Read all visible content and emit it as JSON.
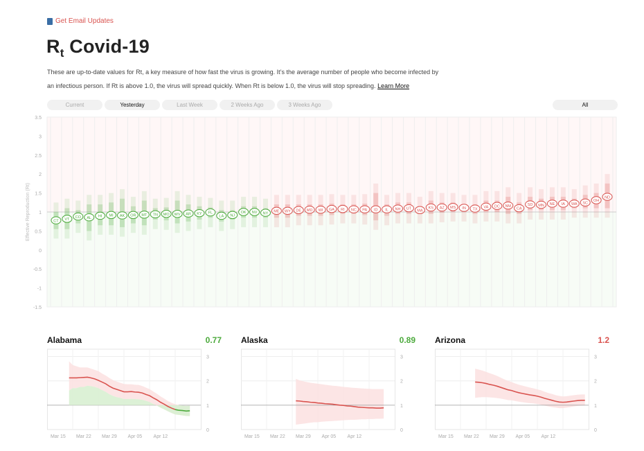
{
  "header": {
    "email_link": "Get Email Updates",
    "title_main": "R",
    "title_sub": "t",
    "title_rest": " Covid-19",
    "intro_text": "These are up-to-date values for Rt, a key measure of how fast the virus is growing. It’s the average number of people who become infected by an infectious person. If Rt is above 1.0, the virus will spread quickly. When Rt is below 1.0, the virus will stop spreading.",
    "learn_more": "Learn More"
  },
  "tabs": [
    {
      "label": "Current",
      "active": false
    },
    {
      "label": "Yesterday",
      "active": true
    },
    {
      "label": "Last Week",
      "active": false
    },
    {
      "label": "2 Weeks Ago",
      "active": false
    },
    {
      "label": "3 Weeks Ago",
      "active": false
    }
  ],
  "filter": {
    "label": "All"
  },
  "colors": {
    "below": "#4caa3c",
    "above": "#d9534f",
    "below_fill": "#d8f0d2",
    "above_fill": "#fbe1e1"
  },
  "chart_data": [
    {
      "type": "scatter",
      "ylabel": "Effective Reproduction (Rt)",
      "ylim": [
        -1.5,
        3.5
      ],
      "yticks": [
        "3.5",
        "3",
        "2.5",
        "2",
        "1.5",
        "1",
        "0.5",
        "0",
        "-0.5",
        "-1",
        "-1.5"
      ],
      "reference_line": 1,
      "states": [
        "CT",
        "VT",
        "CO",
        "AL",
        "HI",
        "MI",
        "AK",
        "OR",
        "MT",
        "TN",
        "MO",
        "WV",
        "AR",
        "KY",
        "FL",
        "LA",
        "NJ",
        "OK",
        "NV",
        "NY",
        "ME",
        "WY",
        "DE",
        "MD",
        "WI",
        "GA",
        "RI",
        "NC",
        "PA",
        "ID",
        "IL",
        "NH",
        "UT",
        "MA",
        "KS",
        "AZ",
        "MS",
        "IN",
        "TX",
        "VA",
        "DC",
        "NM",
        "CA",
        "SD",
        "MN",
        "NE",
        "IA",
        "WA",
        "SC",
        "OH",
        "ND"
      ],
      "rt": [
        0.78,
        0.82,
        0.88,
        0.86,
        0.9,
        0.92,
        0.91,
        0.92,
        0.93,
        0.94,
        0.95,
        0.95,
        0.96,
        0.97,
        0.99,
        0.9,
        0.92,
        1.0,
        1.0,
        0.98,
        1.03,
        1.03,
        1.05,
        1.06,
        1.06,
        1.08,
        1.08,
        1.07,
        1.07,
        1.07,
        1.07,
        1.09,
        1.1,
        1.05,
        1.12,
        1.12,
        1.13,
        1.11,
        1.09,
        1.14,
        1.16,
        1.17,
        1.1,
        1.2,
        1.19,
        1.22,
        1.22,
        1.22,
        1.25,
        1.31,
        1.4
      ],
      "low80": [
        0.55,
        0.55,
        0.7,
        0.5,
        0.65,
        0.65,
        0.6,
        0.7,
        0.65,
        0.8,
        0.78,
        0.7,
        0.75,
        0.8,
        0.85,
        0.75,
        0.8,
        0.85,
        0.85,
        0.85,
        0.85,
        0.85,
        0.9,
        0.9,
        0.9,
        0.92,
        0.95,
        0.95,
        0.92,
        0.78,
        0.9,
        0.95,
        0.95,
        0.95,
        0.95,
        0.98,
        1.0,
        1.0,
        0.95,
        1.0,
        1.0,
        0.95,
        0.95,
        1.05,
        1.05,
        1.05,
        1.05,
        1.1,
        1.1,
        1.1,
        1.1
      ],
      "high80": [
        1.0,
        1.1,
        1.05,
        1.2,
        1.2,
        1.25,
        1.35,
        1.15,
        1.3,
        1.1,
        1.12,
        1.3,
        1.2,
        1.15,
        1.12,
        1.05,
        1.05,
        1.15,
        1.15,
        1.1,
        1.2,
        1.2,
        1.2,
        1.2,
        1.2,
        1.22,
        1.2,
        1.2,
        1.22,
        1.5,
        1.2,
        1.25,
        1.25,
        1.15,
        1.3,
        1.25,
        1.25,
        1.2,
        1.2,
        1.3,
        1.3,
        1.4,
        1.25,
        1.4,
        1.35,
        1.4,
        1.4,
        1.35,
        1.45,
        1.5,
        1.75
      ]
    },
    {
      "type": "line",
      "state": "Alabama",
      "latest": "0.77",
      "status": "below",
      "xticks": [
        "Mar 15",
        "Mar 22",
        "Mar 29",
        "Apr 05",
        "Apr 12"
      ],
      "ylim": [
        0,
        3.3
      ],
      "yticks": [
        "0",
        "1",
        "2",
        "3"
      ],
      "x_days": [
        6,
        7,
        8,
        9,
        10,
        11,
        12,
        13,
        14,
        15,
        16,
        17,
        18,
        19,
        20,
        21,
        22,
        23,
        24,
        25,
        26,
        27,
        28,
        29,
        30,
        31,
        32,
        33,
        34,
        35,
        36,
        37,
        38,
        39
      ],
      "values": [
        2.12,
        2.12,
        2.12,
        2.13,
        2.14,
        2.15,
        2.12,
        2.08,
        2.02,
        1.95,
        1.88,
        1.78,
        1.7,
        1.65,
        1.6,
        1.55,
        1.55,
        1.56,
        1.54,
        1.53,
        1.5,
        1.44,
        1.39,
        1.3,
        1.22,
        1.12,
        1.04,
        0.95,
        0.88,
        0.82,
        0.79,
        0.78,
        0.76,
        0.77
      ],
      "band_low": [
        1.6,
        1.7,
        1.7,
        1.75,
        1.75,
        1.8,
        1.78,
        1.75,
        1.7,
        1.62,
        1.55,
        1.45,
        1.38,
        1.33,
        1.3,
        1.25,
        1.25,
        1.26,
        1.25,
        1.24,
        1.22,
        1.18,
        1.13,
        1.05,
        0.98,
        0.9,
        0.83,
        0.75,
        0.68,
        0.62,
        0.6,
        0.58,
        0.56,
        0.55
      ],
      "band_high": [
        2.8,
        2.65,
        2.6,
        2.55,
        2.55,
        2.55,
        2.5,
        2.45,
        2.4,
        2.3,
        2.22,
        2.12,
        2.03,
        1.97,
        1.92,
        1.87,
        1.86,
        1.86,
        1.84,
        1.83,
        1.79,
        1.72,
        1.66,
        1.56,
        1.47,
        1.36,
        1.27,
        1.17,
        1.1,
        1.04,
        1.0,
        0.98,
        0.97,
        0.98
      ],
      "split": 29
    },
    {
      "type": "line",
      "state": "Alaska",
      "latest": "0.89",
      "status": "below",
      "xticks": [
        "Mar 15",
        "Mar 22",
        "Mar 29",
        "Apr 05",
        "Apr 12"
      ],
      "ylim": [
        0,
        3.3
      ],
      "yticks": [
        "0",
        "1",
        "2",
        "3"
      ],
      "x_days": [
        15,
        16,
        17,
        18,
        19,
        20,
        21,
        22,
        23,
        24,
        25,
        26,
        27,
        28,
        29,
        30,
        31,
        32,
        33,
        34,
        35,
        36,
        37,
        38,
        39
      ],
      "values": [
        1.18,
        1.17,
        1.15,
        1.14,
        1.12,
        1.11,
        1.09,
        1.08,
        1.06,
        1.05,
        1.04,
        1.02,
        1.0,
        0.99,
        0.97,
        0.96,
        0.94,
        0.92,
        0.91,
        0.9,
        0.89,
        0.89,
        0.88,
        0.88,
        0.89
      ],
      "band_low": [
        0.2,
        0.22,
        0.24,
        0.26,
        0.28,
        0.3,
        0.3,
        0.32,
        0.33,
        0.34,
        0.35,
        0.36,
        0.37,
        0.38,
        0.39,
        0.4,
        0.4,
        0.41,
        0.42,
        0.42,
        0.43,
        0.43,
        0.44,
        0.44,
        0.45
      ],
      "band_high": [
        2.08,
        2.02,
        1.98,
        1.95,
        1.92,
        1.9,
        1.88,
        1.86,
        1.84,
        1.82,
        1.8,
        1.79,
        1.77,
        1.75,
        1.74,
        1.72,
        1.71,
        1.7,
        1.69,
        1.68,
        1.67,
        1.66,
        1.66,
        1.66,
        1.66
      ],
      "split": 27
    },
    {
      "type": "line",
      "state": "Arizona",
      "latest": "1.2",
      "status": "above",
      "xticks": [
        "Mar 15",
        "Mar 22",
        "Mar 29",
        "Apr 05",
        "Apr 12"
      ],
      "ylim": [
        0,
        3.3
      ],
      "yticks": [
        "0",
        "1",
        "2",
        "3"
      ],
      "x_days": [
        11,
        12,
        13,
        14,
        15,
        16,
        17,
        18,
        19,
        20,
        21,
        22,
        23,
        24,
        25,
        26,
        27,
        28,
        29,
        30,
        31,
        32,
        33,
        34,
        35,
        36,
        37,
        38,
        39,
        40,
        41
      ],
      "values": [
        1.95,
        1.94,
        1.92,
        1.89,
        1.85,
        1.82,
        1.78,
        1.73,
        1.68,
        1.63,
        1.6,
        1.55,
        1.51,
        1.48,
        1.45,
        1.42,
        1.4,
        1.37,
        1.33,
        1.28,
        1.24,
        1.2,
        1.16,
        1.13,
        1.12,
        1.13,
        1.15,
        1.17,
        1.19,
        1.2,
        1.2
      ],
      "band_low": [
        1.3,
        1.32,
        1.33,
        1.33,
        1.32,
        1.31,
        1.29,
        1.27,
        1.24,
        1.21,
        1.2,
        1.17,
        1.14,
        1.12,
        1.1,
        1.08,
        1.07,
        1.05,
        1.02,
        0.98,
        0.95,
        0.92,
        0.9,
        0.88,
        0.88,
        0.9,
        0.92,
        0.95,
        0.97,
        0.98,
        0.99
      ],
      "band_high": [
        2.5,
        2.46,
        2.42,
        2.37,
        2.31,
        2.26,
        2.2,
        2.13,
        2.06,
        2.0,
        1.95,
        1.89,
        1.84,
        1.8,
        1.76,
        1.72,
        1.69,
        1.65,
        1.61,
        1.55,
        1.5,
        1.46,
        1.41,
        1.38,
        1.36,
        1.37,
        1.39,
        1.41,
        1.43,
        1.44,
        1.44
      ],
      "split": 99
    }
  ]
}
